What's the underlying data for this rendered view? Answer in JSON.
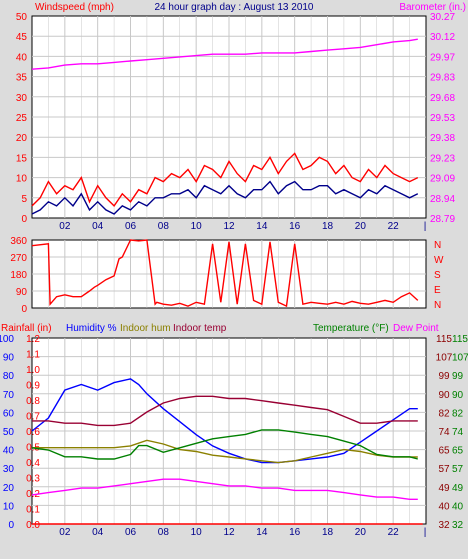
{
  "colors": {
    "bg": "#dcdcdc",
    "plot": "#ffffff",
    "grid": "#c8c8c8",
    "frame": "#000000",
    "red": "#ff0000",
    "blue": "#0000ff",
    "magenta": "#ff00ff",
    "olive": "#8b8000",
    "maroon": "#990033",
    "green": "#008000",
    "darkblue": "#00008b",
    "darkred": "#8b0000"
  },
  "chart_data": [
    {
      "type": "line",
      "title": "24 hour graph day : August 13 2010",
      "left_label": "Windspeed (mph)",
      "right_label": "Barometer (in.)",
      "x_ticks": [
        "02",
        "04",
        "06",
        "08",
        "10",
        "12",
        "14",
        "16",
        "18",
        "20",
        "22"
      ],
      "x_range": [
        0,
        24
      ],
      "y_left": {
        "range": [
          0,
          50
        ],
        "ticks": [
          "0",
          "5",
          "10",
          "15",
          "20",
          "25",
          "30",
          "35",
          "40",
          "45",
          "50"
        ]
      },
      "y_right": {
        "range": [
          28.79,
          30.27
        ],
        "ticks": [
          "28.79",
          "28.94",
          "29.09",
          "29.23",
          "29.38",
          "29.53",
          "29.68",
          "29.83",
          "29.97",
          "30.12",
          "30.27"
        ]
      },
      "series": [
        {
          "axis": "right",
          "color": "magenta",
          "x": [
            0,
            1,
            2,
            3,
            4,
            5,
            6,
            7,
            8,
            9,
            10,
            11,
            12,
            13,
            14,
            15,
            16,
            17,
            18,
            19,
            20,
            21,
            22,
            23,
            23.5
          ],
          "values": [
            29.88,
            29.89,
            29.91,
            29.92,
            29.92,
            29.93,
            29.94,
            29.95,
            29.96,
            29.97,
            29.98,
            29.99,
            29.99,
            29.99,
            30.0,
            30.0,
            30.0,
            30.01,
            30.02,
            30.03,
            30.04,
            30.06,
            30.08,
            30.09,
            30.1
          ]
        },
        {
          "axis": "left",
          "color": "red",
          "x": [
            0,
            0.5,
            1,
            1.5,
            2,
            2.5,
            3,
            3.5,
            4,
            4.5,
            5,
            5.5,
            6,
            6.5,
            7,
            7.5,
            8,
            8.5,
            9,
            9.5,
            10,
            10.5,
            11,
            11.5,
            12,
            12.5,
            13,
            13.5,
            14,
            14.5,
            15,
            15.5,
            16,
            16.5,
            17,
            17.5,
            18,
            18.5,
            19,
            19.5,
            20,
            20.5,
            21,
            21.5,
            22,
            22.5,
            23,
            23.5
          ],
          "values": [
            3,
            5,
            9,
            6,
            8,
            7,
            10,
            4,
            8,
            5,
            3,
            6,
            4,
            7,
            6,
            10,
            9,
            11,
            10,
            12,
            9,
            13,
            12,
            10,
            14,
            11,
            9,
            13,
            12,
            15,
            11,
            14,
            16,
            12,
            13,
            15,
            14,
            11,
            13,
            10,
            9,
            12,
            10,
            13,
            11,
            10,
            9,
            10
          ]
        },
        {
          "axis": "left",
          "color": "darkblue",
          "x": [
            0,
            0.5,
            1,
            1.5,
            2,
            2.5,
            3,
            3.5,
            4,
            4.5,
            5,
            5.5,
            6,
            6.5,
            7,
            7.5,
            8,
            8.5,
            9,
            9.5,
            10,
            10.5,
            11,
            11.5,
            12,
            12.5,
            13,
            13.5,
            14,
            14.5,
            15,
            15.5,
            16,
            16.5,
            17,
            17.5,
            18,
            18.5,
            19,
            19.5,
            20,
            20.5,
            21,
            21.5,
            22,
            22.5,
            23,
            23.5
          ],
          "values": [
            1,
            2,
            4,
            3,
            5,
            3,
            6,
            2,
            4,
            2,
            1,
            3,
            2,
            4,
            3,
            5,
            5,
            6,
            6,
            7,
            5,
            8,
            7,
            6,
            8,
            6,
            5,
            7,
            7,
            9,
            6,
            8,
            9,
            7,
            7,
            8,
            8,
            6,
            7,
            6,
            5,
            7,
            6,
            8,
            7,
            6,
            5,
            6
          ]
        }
      ]
    },
    {
      "type": "line",
      "title": "",
      "y_left": {
        "range": [
          0,
          360
        ],
        "ticks": [
          "0",
          "90",
          "180",
          "270",
          "360"
        ]
      },
      "y_right_labels": [
        "N",
        "W",
        "S",
        "E",
        "N"
      ],
      "series": [
        {
          "axis": "left",
          "color": "red",
          "x": [
            0,
            1,
            1.1,
            1.5,
            2,
            2.5,
            3,
            3.5,
            3.8,
            4,
            4.5,
            5,
            5.3,
            5.5,
            6,
            6.5,
            7,
            7.5,
            7.6,
            8,
            8.5,
            9,
            9.5,
            10,
            10.5,
            11,
            11.5,
            12,
            12.5,
            13,
            13.5,
            14,
            14.5,
            15,
            15.5,
            16,
            16.5,
            17,
            17.5,
            18,
            18.5,
            19,
            19.5,
            20,
            20.5,
            21,
            21.5,
            22,
            22.5,
            23,
            23.5
          ],
          "values": [
            330,
            340,
            20,
            60,
            70,
            60,
            60,
            90,
            110,
            120,
            150,
            170,
            260,
            270,
            360,
            355,
            360,
            20,
            30,
            20,
            15,
            25,
            10,
            30,
            20,
            340,
            30,
            350,
            20,
            340,
            40,
            20,
            350,
            30,
            10,
            340,
            20,
            30,
            25,
            20,
            30,
            20,
            35,
            25,
            20,
            30,
            40,
            30,
            60,
            80,
            40
          ]
        }
      ]
    },
    {
      "type": "line",
      "title": "",
      "header_labels": {
        "rainfall": "Rainfall (in)",
        "humidity": "Humidity %",
        "indoor_hum": "Indoor hum",
        "indoor_temp": "Indoor temp",
        "temperature": "Temperature (°F)",
        "dew_point": "Dew Point"
      },
      "x_ticks": [
        "02",
        "04",
        "06",
        "08",
        "10",
        "12",
        "14",
        "16",
        "18",
        "20",
        "22"
      ],
      "y_rain": {
        "range": [
          0,
          1.2
        ],
        "ticks": [
          "0.0",
          "0.1",
          "0.2",
          "0.3",
          "0.4",
          "0.5",
          "0.6",
          "0.7",
          "0.8",
          "0.9",
          "1.0",
          "1.1",
          "1.2"
        ]
      },
      "y_hum": {
        "range": [
          0,
          100
        ],
        "ticks": [
          "0",
          "10",
          "20",
          "30",
          "40",
          "50",
          "60",
          "70",
          "80",
          "90",
          "100"
        ]
      },
      "y_temp": {
        "range": [
          32,
          115
        ],
        "ticks": [
          "32",
          "40",
          "49",
          "57",
          "65",
          "74",
          "82",
          "90",
          "99",
          "107",
          "115"
        ]
      },
      "series": [
        {
          "axis": "hum",
          "color": "blue",
          "name": "Humidity %",
          "x": [
            0,
            1,
            2,
            3,
            4,
            5,
            6,
            6.5,
            7,
            8,
            9,
            10,
            11,
            12,
            13,
            14,
            15,
            16,
            17,
            18,
            19,
            20,
            21,
            22,
            23,
            23.5
          ],
          "values": [
            50,
            57,
            72,
            75,
            72,
            76,
            78,
            75,
            70,
            62,
            55,
            48,
            42,
            38,
            35,
            33,
            33,
            34,
            35,
            36,
            38,
            44,
            50,
            56,
            62,
            62
          ]
        },
        {
          "axis": "hum",
          "color": "olive",
          "name": "Indoor hum",
          "x": [
            0,
            1,
            2,
            3,
            4,
            5,
            6,
            7,
            8,
            9,
            10,
            11,
            12,
            13,
            14,
            15,
            16,
            17,
            18,
            19,
            20,
            21,
            22,
            23,
            23.5
          ],
          "values": [
            41,
            41,
            41,
            41,
            41,
            41,
            42,
            45,
            43,
            40,
            39,
            37,
            36,
            35,
            34,
            33,
            34,
            36,
            38,
            40,
            39,
            37,
            36,
            36,
            36
          ]
        },
        {
          "axis": "temp",
          "color": "maroon",
          "name": "Indoor temp",
          "x": [
            0,
            1,
            2,
            3,
            4,
            5,
            6,
            7,
            8,
            9,
            10,
            11,
            12,
            13,
            14,
            15,
            16,
            17,
            18,
            19,
            20,
            21,
            22,
            23,
            23.5
          ],
          "values": [
            78,
            78,
            77,
            77,
            76,
            76,
            77,
            82,
            86,
            88,
            89,
            89,
            88,
            88,
            87,
            86,
            85,
            84,
            83,
            80,
            77,
            77,
            78,
            78,
            78
          ]
        },
        {
          "axis": "temp",
          "color": "green",
          "name": "Temperature (°F)",
          "x": [
            0,
            1,
            2,
            3,
            4,
            5,
            6,
            6.5,
            7,
            8,
            9,
            10,
            11,
            12,
            13,
            14,
            15,
            16,
            17,
            18,
            19,
            20,
            21,
            22,
            23,
            23.5
          ],
          "values": [
            66,
            65,
            62,
            62,
            61,
            61,
            63,
            67,
            67,
            64,
            66,
            68,
            70,
            71,
            72,
            74,
            74,
            73,
            72,
            71,
            69,
            67,
            63,
            62,
            62,
            61
          ]
        },
        {
          "axis": "temp",
          "color": "magenta",
          "name": "Dew Point",
          "x": [
            0,
            1,
            2,
            3,
            4,
            5,
            6,
            7,
            8,
            9,
            10,
            11,
            12,
            13,
            14,
            15,
            16,
            17,
            18,
            19,
            20,
            21,
            22,
            23,
            23.5
          ],
          "values": [
            45,
            46,
            47,
            48,
            48,
            49,
            50,
            51,
            52,
            52,
            51,
            50,
            49,
            49,
            48,
            48,
            47,
            47,
            47,
            46,
            45,
            44,
            44,
            43,
            43
          ]
        },
        {
          "axis": "rain",
          "color": "red",
          "name": "Rainfall (in)",
          "x": [
            0,
            23.8
          ],
          "values": [
            0.0,
            0.0
          ]
        }
      ]
    }
  ]
}
